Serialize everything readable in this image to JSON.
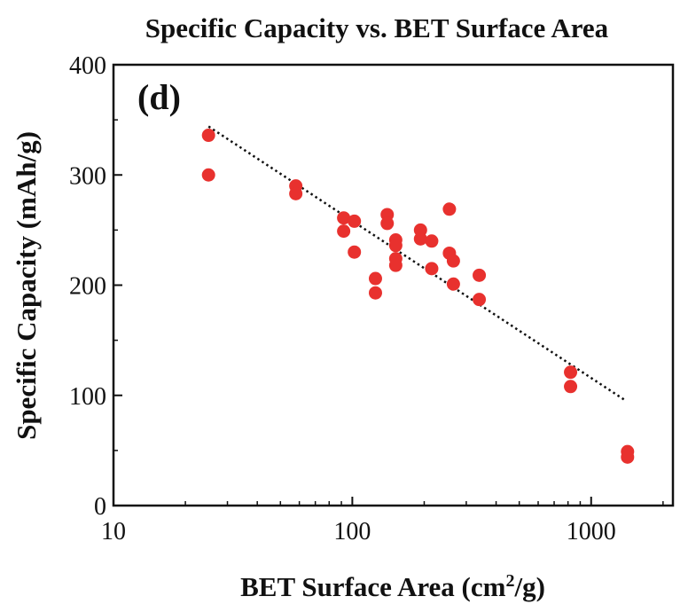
{
  "chart_data": {
    "type": "scatter",
    "title": "Specific Capacity vs. BET Surface Area",
    "panel_label": "(d)",
    "xlabel_main": "BET Surface Area (cm",
    "xlabel_sup": "2",
    "xlabel_end": "/g)",
    "ylabel": "Specific Capacity (mAh/g)",
    "xscale": "log",
    "xlim": [
      10,
      2200
    ],
    "ylim": [
      0,
      400
    ],
    "x_ticks": [
      10,
      100,
      1000
    ],
    "x_tick_labels": [
      "10",
      "100",
      "1000"
    ],
    "y_ticks": [
      0,
      100,
      200,
      300,
      400
    ],
    "y_tick_labels": [
      "0",
      "100",
      "200",
      "300",
      "400"
    ],
    "grid": false,
    "point_color": "#e8312e",
    "trendline": {
      "x": [
        25,
        1400
      ],
      "y": [
        344,
        95
      ],
      "style": "dotted"
    },
    "points": [
      {
        "x": 25,
        "y": 336
      },
      {
        "x": 25,
        "y": 300
      },
      {
        "x": 58,
        "y": 290
      },
      {
        "x": 58,
        "y": 283
      },
      {
        "x": 92,
        "y": 261
      },
      {
        "x": 92,
        "y": 249
      },
      {
        "x": 102,
        "y": 258
      },
      {
        "x": 102,
        "y": 230
      },
      {
        "x": 125,
        "y": 206
      },
      {
        "x": 125,
        "y": 193
      },
      {
        "x": 140,
        "y": 264
      },
      {
        "x": 140,
        "y": 256
      },
      {
        "x": 152,
        "y": 241
      },
      {
        "x": 152,
        "y": 236
      },
      {
        "x": 152,
        "y": 224
      },
      {
        "x": 152,
        "y": 218
      },
      {
        "x": 193,
        "y": 250
      },
      {
        "x": 193,
        "y": 242
      },
      {
        "x": 215,
        "y": 240
      },
      {
        "x": 215,
        "y": 215
      },
      {
        "x": 255,
        "y": 269
      },
      {
        "x": 255,
        "y": 229
      },
      {
        "x": 265,
        "y": 222
      },
      {
        "x": 265,
        "y": 201
      },
      {
        "x": 340,
        "y": 209
      },
      {
        "x": 340,
        "y": 187
      },
      {
        "x": 820,
        "y": 121
      },
      {
        "x": 820,
        "y": 108
      },
      {
        "x": 1420,
        "y": 49
      },
      {
        "x": 1420,
        "y": 44
      }
    ]
  }
}
